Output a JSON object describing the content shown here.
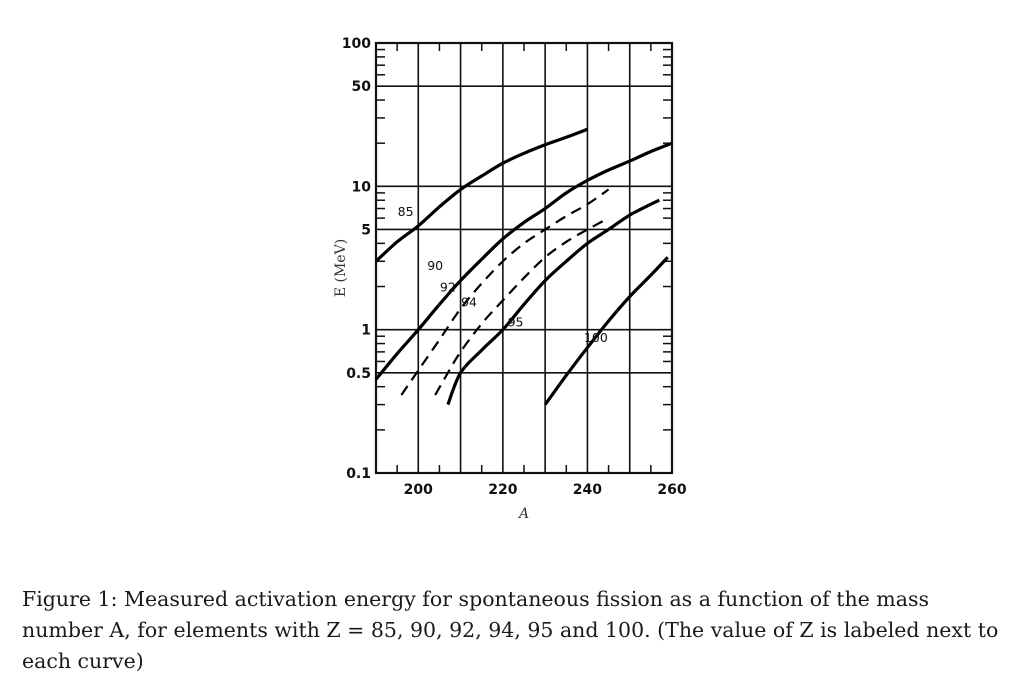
{
  "chart_data": {
    "type": "line",
    "title": "",
    "xlabel": "A",
    "ylabel": "E (MeV)",
    "xscale": "linear",
    "yscale": "log",
    "xlim": [
      190,
      260
    ],
    "ylim": [
      0.1,
      100
    ],
    "x_ticks": [
      200,
      220,
      240,
      260
    ],
    "y_ticks": [
      0.1,
      0.5,
      1,
      5,
      10,
      50,
      100
    ],
    "x_tick_labels": [
      "200",
      "220",
      "240",
      "260"
    ],
    "y_tick_labels": [
      "0.1",
      "0.5",
      "1",
      "5",
      "10",
      "50",
      "100"
    ],
    "x_gridlines": [
      200,
      210,
      220,
      230,
      240,
      250
    ],
    "y_gridlines": [
      0.5,
      1,
      5,
      10,
      50
    ],
    "grid": true,
    "legend": "none (labels next to curves)",
    "series": [
      {
        "name": "85",
        "style": "solid",
        "label_pos": [
          197,
          6.2
        ],
        "x": [
          190,
          195,
          200,
          205,
          210,
          215,
          220,
          225,
          230,
          235,
          240
        ],
        "y": [
          3.0,
          4.1,
          5.3,
          7.2,
          9.5,
          11.8,
          14.5,
          17,
          19.5,
          22,
          25
        ]
      },
      {
        "name": "90",
        "style": "solid",
        "label_pos": [
          204,
          2.6
        ],
        "x": [
          190,
          195,
          200,
          205,
          210,
          215,
          220,
          225,
          230,
          235,
          240,
          245,
          250,
          255,
          260
        ],
        "y": [
          0.45,
          0.68,
          1.0,
          1.5,
          2.2,
          3.1,
          4.3,
          5.6,
          7.0,
          9.0,
          11,
          13,
          15,
          17.5,
          20
        ]
      },
      {
        "name": "92",
        "style": "dashed",
        "label_pos": [
          207,
          1.85
        ],
        "x": [
          196,
          200,
          205,
          210,
          215,
          220,
          225,
          230,
          235,
          240,
          245
        ],
        "y": [
          0.35,
          0.52,
          0.85,
          1.4,
          2.1,
          3.0,
          4.0,
          5.0,
          6.2,
          7.5,
          9.5
        ]
      },
      {
        "name": "94",
        "style": "dashed",
        "label_pos": [
          212,
          1.45
        ],
        "x": [
          204,
          207,
          210,
          215,
          220,
          225,
          230,
          235,
          240,
          245
        ],
        "y": [
          0.35,
          0.5,
          0.7,
          1.1,
          1.6,
          2.3,
          3.2,
          4.1,
          5.0,
          6.0
        ]
      },
      {
        "name": "95",
        "style": "solid",
        "label_pos": [
          223,
          1.05
        ],
        "x": [
          207,
          210,
          215,
          220,
          225,
          230,
          235,
          240,
          245,
          250,
          255,
          257
        ],
        "y": [
          0.3,
          0.5,
          0.72,
          1.0,
          1.5,
          2.2,
          3.0,
          4.0,
          5.0,
          6.3,
          7.5,
          8.0
        ]
      },
      {
        "name": "100",
        "style": "solid",
        "label_pos": [
          242,
          0.82
        ],
        "x": [
          230,
          235,
          240,
          245,
          250,
          255,
          259
        ],
        "y": [
          0.3,
          0.48,
          0.75,
          1.15,
          1.7,
          2.4,
          3.2
        ]
      }
    ]
  },
  "caption": {
    "text": "Figure 1: Measured activation energy for spontaneous fission as a function of the mass number A, for elements with Z = 85, 90, 92, 94, 95 and 100. (The value of Z is labeled next to each curve)"
  }
}
